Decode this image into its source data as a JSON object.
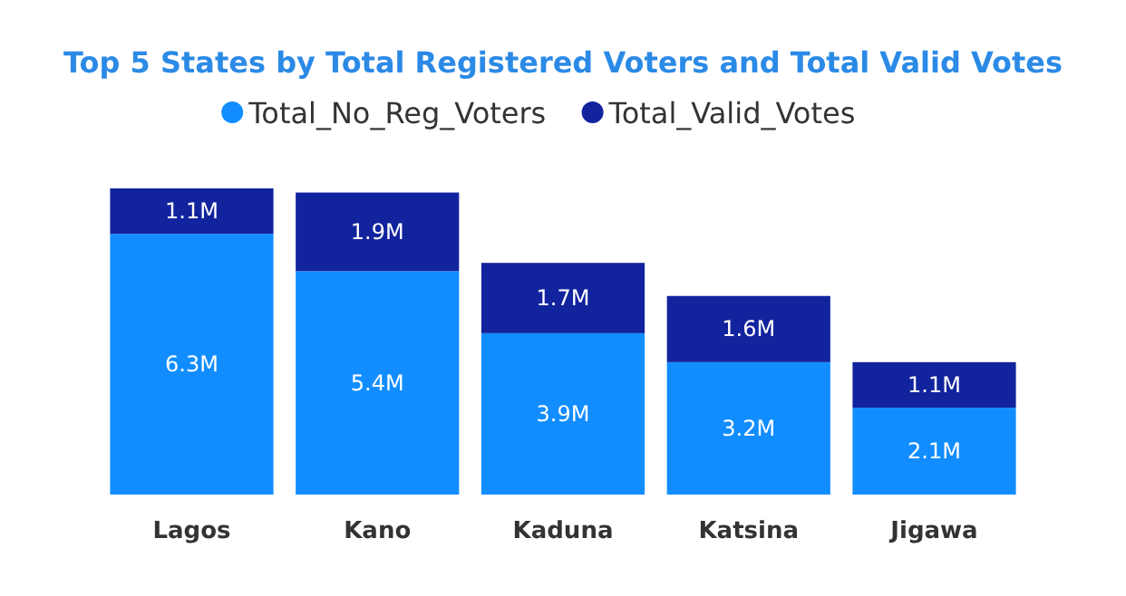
{
  "chart_data": {
    "type": "bar",
    "title": "Top 5 States by Total Registered Voters and Total Valid Votes",
    "categories": [
      "Lagos",
      "Kano",
      "Kaduna",
      "Katsina",
      "Jigawa"
    ],
    "stacked": true,
    "legend": "top",
    "series": [
      {
        "name": "Total_No_Reg_Voters",
        "color": "#118dff",
        "values": [
          6.3,
          5.4,
          3.9,
          3.2,
          2.1
        ],
        "value_labels": [
          "6.3M",
          "5.4M",
          "3.9M",
          "3.2M",
          "2.1M"
        ]
      },
      {
        "name": "Total_Valid_Votes",
        "color": "#12239e",
        "values": [
          1.1,
          1.9,
          1.7,
          1.6,
          1.1
        ],
        "value_labels": [
          "1.1M",
          "1.9M",
          "1.7M",
          "1.6M",
          "1.1M"
        ]
      }
    ]
  }
}
